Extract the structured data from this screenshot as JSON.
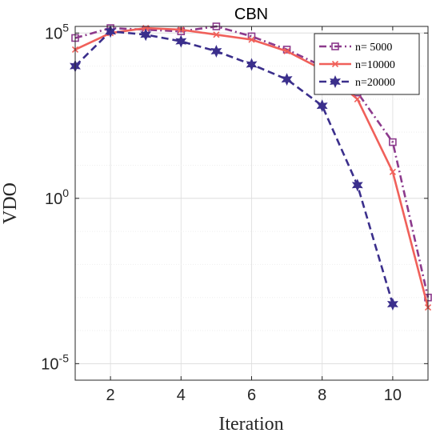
{
  "chart_data": {
    "type": "line",
    "title": "CBN",
    "xlabel": "Iteration",
    "ylabel": "VDO",
    "xlim": [
      1,
      11
    ],
    "ylim_log10": [
      -5.5,
      5.2
    ],
    "yscale": "log",
    "grid": true,
    "legend_position": "top-right",
    "x_ticks": [
      2,
      4,
      6,
      8,
      10
    ],
    "x_tick_labels": [
      "2",
      "4",
      "6",
      "8",
      "10"
    ],
    "y_ticks_log10": [
      5,
      0,
      -5
    ],
    "y_tick_labels": [
      {
        "base": "10",
        "exp": "5"
      },
      {
        "base": "10",
        "exp": "0"
      },
      {
        "base": "10",
        "exp": "-5"
      }
    ],
    "series": [
      {
        "name": "n= 5000",
        "color": "#8c3a8c",
        "dash": "dashdot",
        "marker": "square",
        "x": [
          1,
          2,
          3,
          4,
          5,
          6,
          7,
          8,
          9,
          10,
          11
        ],
        "log10_values": [
          4.85,
          5.15,
          5.1,
          5.05,
          5.2,
          4.9,
          4.5,
          4.0,
          3.2,
          1.7,
          -3.0
        ]
      },
      {
        "name": "n=10000",
        "color": "#f0605a",
        "dash": "solid",
        "marker": "x",
        "x": [
          1,
          2,
          3,
          4,
          5,
          6,
          7,
          8,
          9,
          10,
          11
        ],
        "log10_values": [
          4.5,
          5.0,
          5.15,
          5.1,
          4.95,
          4.8,
          4.45,
          3.9,
          3.0,
          0.8,
          -3.3
        ]
      },
      {
        "name": "n=20000",
        "color": "#3b2f8c",
        "dash": "dashed",
        "marker": "hexagram",
        "x": [
          1,
          2,
          3,
          4,
          5,
          6,
          7,
          8,
          9,
          10
        ],
        "log10_values": [
          4.0,
          5.05,
          4.95,
          4.75,
          4.45,
          4.05,
          3.6,
          2.8,
          0.4,
          -3.2
        ]
      }
    ]
  }
}
